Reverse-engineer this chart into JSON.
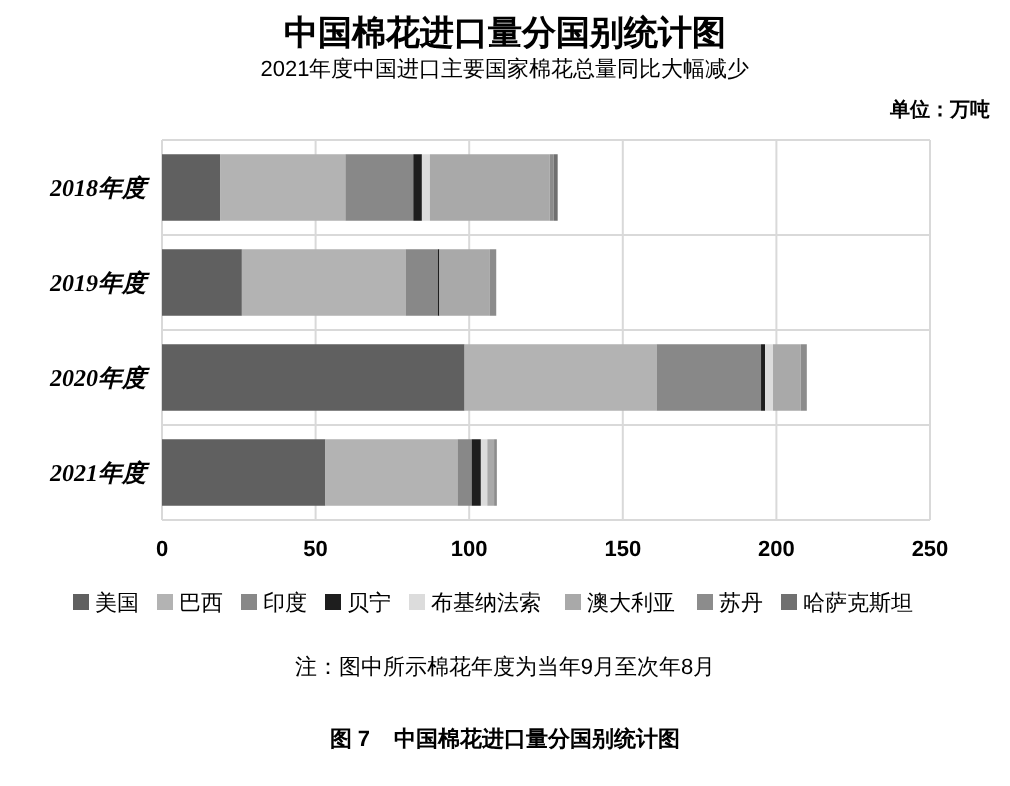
{
  "chart_data": {
    "type": "bar",
    "orientation": "horizontal",
    "stacked": true,
    "title": "中国棉花进口量分国别统计图",
    "subtitle": "2021年度中国进口主要国家棉花总量同比大幅减少",
    "categories": [
      "2018年度",
      "2019年度",
      "2020年度",
      "2021年度"
    ],
    "series": [
      {
        "name": "美国",
        "color": "#606060",
        "values": [
          18.9,
          26,
          98.5,
          53.2
        ]
      },
      {
        "name": "巴西",
        "color": "#b3b3b3",
        "values": [
          40.8,
          53.3,
          62.5,
          43
        ]
      },
      {
        "name": "印度",
        "color": "#888888",
        "values": [
          22.1,
          10.5,
          34,
          4.6
        ]
      },
      {
        "name": "贝宁",
        "color": "#1e1e1e",
        "values": [
          2.8,
          0.5,
          1.3,
          3
        ]
      },
      {
        "name": "布基纳法索",
        "color": "#dcdcdc",
        "values": [
          2.6,
          0,
          2.6,
          2.1
        ]
      },
      {
        "name": "澳大利亚",
        "color": "#a9a9a9",
        "values": [
          39,
          16.3,
          9,
          2.2
        ]
      },
      {
        "name": "苏丹",
        "color": "#8c8c8c",
        "values": [
          1.3,
          2.2,
          2,
          0.9
        ]
      },
      {
        "name": "哈萨克斯坦",
        "color": "#707070",
        "values": [
          1.3,
          0,
          0,
          0
        ]
      }
    ],
    "xlim": [
      0,
      250
    ],
    "xticks": [
      0,
      50,
      100,
      150,
      200,
      250
    ],
    "grid": true,
    "legend": "bottom",
    "annotations": [
      "单位：万吨",
      "注：图中所示棉花年度为当年9月至次年8月",
      "图 7    中国棉花进口量分国别统计图"
    ]
  }
}
